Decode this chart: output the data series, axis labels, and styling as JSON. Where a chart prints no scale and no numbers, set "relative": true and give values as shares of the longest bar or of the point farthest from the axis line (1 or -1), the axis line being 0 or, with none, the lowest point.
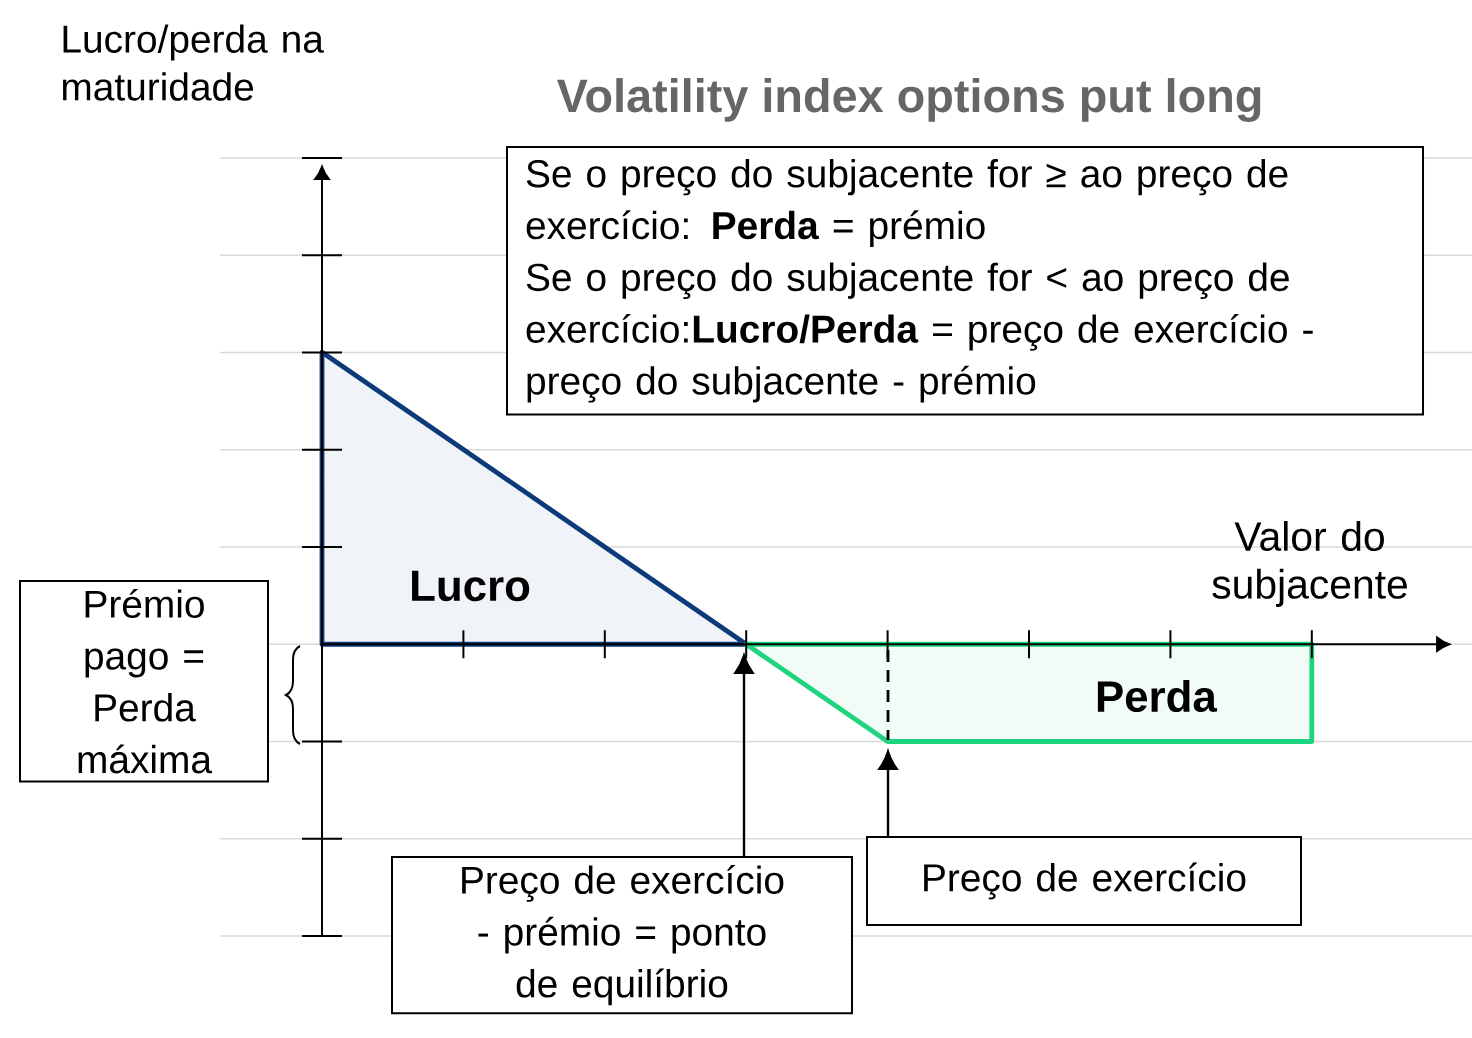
{
  "chart_data": {
    "type": "area",
    "title": "Volatility index options put long",
    "xlabel": "Valor do subjacente",
    "relative": true,
    "grid": "y",
    "categories": [
      null,
      null,
      null,
      null,
      null,
      null,
      null,
      null
    ],
    "series": [
      {
        "color": "#0d3a7a",
        "values": [
          1,
          0.667,
          0.333,
          0,
          null,
          null,
          null,
          null
        ]
      },
      {
        "color": "#1fd47e",
        "values": [
          null,
          null,
          null,
          0,
          -0.333,
          -0.333,
          -0.333,
          -0.333
        ]
      }
    ],
    "annotations": [
      "Se o preço do subjacente for ≥ ao preço de exercício: **Perda** = prémio",
      "Se o preço do subjacente for < ao preço de exercício:**Lucro/Perda** = preço de exercício - preço do subjacente - prémio",
      "**Lucro**",
      "**Perda**",
      "Prémio pago = Perda máxima",
      "Preço de exercício - prémio = ponto de equilíbrio",
      "Preço de exercício",
      "Lucro/perda na maturidade"
    ]
  }
}
